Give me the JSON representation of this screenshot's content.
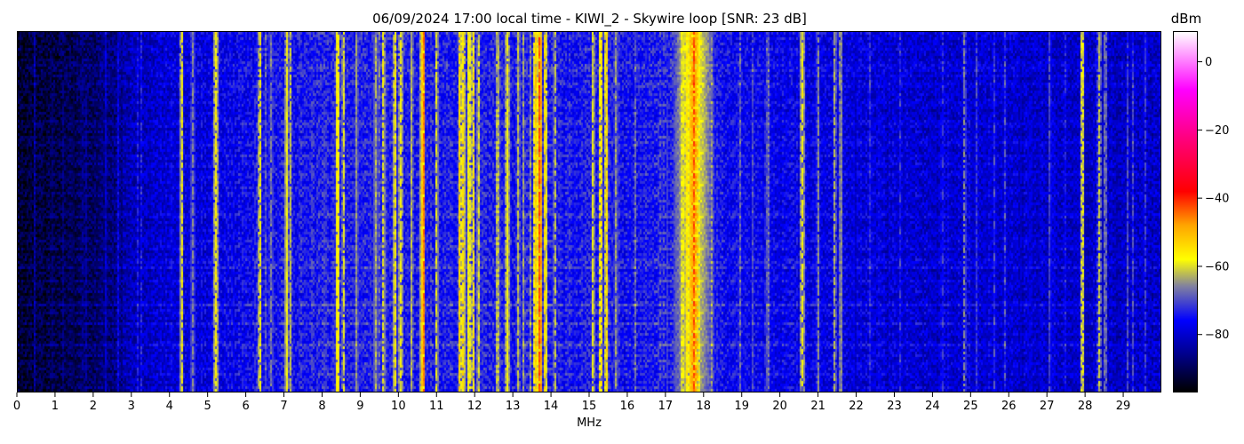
{
  "chart_data": {
    "type": "heatmap",
    "title": "06/09/2024 17:00 local time - KIWI_2 - Skywire loop [SNR: 23 dB]",
    "xlabel": "MHz",
    "xlim": [
      0,
      30
    ],
    "xticks": [
      "0",
      "1",
      "2",
      "3",
      "4",
      "5",
      "6",
      "7",
      "8",
      "9",
      "10",
      "11",
      "12",
      "13",
      "14",
      "15",
      "16",
      "17",
      "18",
      "19",
      "20",
      "21",
      "22",
      "23",
      "24",
      "25",
      "26",
      "27",
      "28",
      "29"
    ],
    "colorbar": {
      "label": "dBm",
      "range": [
        -97,
        9
      ],
      "ticks": [
        "0",
        "−20",
        "−40",
        "−60",
        "−80"
      ],
      "tick_values": [
        0,
        -20,
        -40,
        -60,
        -80
      ],
      "colormap": [
        [
          -97,
          "#000000"
        ],
        [
          -86,
          "#00008b"
        ],
        [
          -76,
          "#0000ff"
        ],
        [
          -66,
          "#8080a0"
        ],
        [
          -58,
          "#ffff00"
        ],
        [
          -48,
          "#ffa500"
        ],
        [
          -38,
          "#ff0000"
        ],
        [
          -22,
          "#ff0080"
        ],
        [
          -8,
          "#ff00ff"
        ],
        [
          9,
          "#ffffff"
        ]
      ]
    },
    "background_dbm_by_frequency": [
      [
        0,
        -93
      ],
      [
        1,
        -91
      ],
      [
        2,
        -88
      ],
      [
        2.5,
        -86
      ],
      [
        3,
        -82
      ],
      [
        4,
        -79
      ],
      [
        5,
        -78
      ],
      [
        6,
        -76
      ],
      [
        8,
        -74
      ],
      [
        10,
        -74
      ],
      [
        12,
        -74
      ],
      [
        14,
        -74
      ],
      [
        16,
        -75
      ],
      [
        17,
        -73
      ],
      [
        18,
        -74
      ],
      [
        19,
        -76
      ],
      [
        20,
        -77
      ],
      [
        22,
        -79
      ],
      [
        26,
        -80
      ],
      [
        30,
        -81
      ]
    ],
    "signal_lines_mhz": [
      {
        "f": 4.3,
        "dbm": -58
      },
      {
        "f": 4.6,
        "dbm": -66
      },
      {
        "f": 5.2,
        "dbm": -57
      },
      {
        "f": 6.35,
        "dbm": -57
      },
      {
        "f": 6.65,
        "dbm": -66
      },
      {
        "f": 7.05,
        "dbm": -58
      },
      {
        "f": 7.15,
        "dbm": -62
      },
      {
        "f": 8.4,
        "dbm": -57
      },
      {
        "f": 8.55,
        "dbm": -60
      },
      {
        "f": 8.9,
        "dbm": -65
      },
      {
        "f": 9.4,
        "dbm": -63
      },
      {
        "f": 9.6,
        "dbm": -58
      },
      {
        "f": 9.9,
        "dbm": -56
      },
      {
        "f": 10.05,
        "dbm": -58
      },
      {
        "f": 10.35,
        "dbm": -62
      },
      {
        "f": 10.6,
        "dbm": -56
      },
      {
        "f": 10.65,
        "dbm": -46
      },
      {
        "f": 11.0,
        "dbm": -60
      },
      {
        "f": 11.6,
        "dbm": -54
      },
      {
        "f": 11.7,
        "dbm": -55
      },
      {
        "f": 11.85,
        "dbm": -58
      },
      {
        "f": 11.95,
        "dbm": -56
      },
      {
        "f": 12.1,
        "dbm": -60
      },
      {
        "f": 12.6,
        "dbm": -63
      },
      {
        "f": 12.85,
        "dbm": -58
      },
      {
        "f": 13.15,
        "dbm": -62
      },
      {
        "f": 13.6,
        "dbm": -52
      },
      {
        "f": 13.7,
        "dbm": -42
      },
      {
        "f": 13.85,
        "dbm": -54
      },
      {
        "f": 14.1,
        "dbm": -62
      },
      {
        "f": 15.1,
        "dbm": -60
      },
      {
        "f": 15.3,
        "dbm": -56
      },
      {
        "f": 15.45,
        "dbm": -54
      },
      {
        "f": 15.7,
        "dbm": -64
      },
      {
        "f": 17.45,
        "dbm": -60
      },
      {
        "f": 17.55,
        "dbm": -56
      },
      {
        "f": 17.65,
        "dbm": -52
      },
      {
        "f": 17.75,
        "dbm": -42
      },
      {
        "f": 17.85,
        "dbm": -52
      },
      {
        "f": 20.6,
        "dbm": -58
      },
      {
        "f": 21.0,
        "dbm": -66
      },
      {
        "f": 21.45,
        "dbm": -63
      },
      {
        "f": 21.6,
        "dbm": -66
      },
      {
        "f": 24.85,
        "dbm": -66
      },
      {
        "f": 27.1,
        "dbm": -70
      },
      {
        "f": 27.95,
        "dbm": -60
      },
      {
        "f": 28.4,
        "dbm": -62
      },
      {
        "f": 28.55,
        "dbm": -68
      },
      {
        "f": 29.6,
        "dbm": -72
      }
    ],
    "broadband_humps_mhz": [
      {
        "center": 17.75,
        "width": 1.1,
        "dbm": -58,
        "strongest_at": "top"
      }
    ],
    "grid": false
  }
}
